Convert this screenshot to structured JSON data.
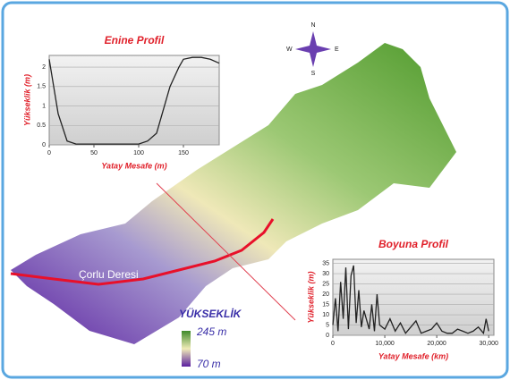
{
  "map": {
    "river": "Çorlu Deresi",
    "legend_title": "YÜKSEKLİK",
    "legend_high": "245 m",
    "legend_low": "70 m",
    "compass": {
      "n": "N",
      "e": "E",
      "s": "S",
      "w": "W"
    }
  },
  "chart_data": [
    {
      "type": "line",
      "title": "Enine Profil",
      "x_label": "Yatay Mesafe (m)",
      "y_label": "Yükseklik (m)",
      "color": "#222222",
      "x": [
        0,
        5,
        10,
        20,
        30,
        100,
        110,
        120,
        135,
        145,
        150,
        160,
        170,
        180,
        190
      ],
      "values": [
        2.2,
        1.5,
        0.8,
        0.1,
        0.02,
        0.02,
        0.1,
        0.3,
        1.5,
        2.0,
        2.2,
        2.25,
        2.25,
        2.2,
        2.1
      ],
      "xlim": [
        0,
        190
      ],
      "ylim": [
        0,
        2.3
      ],
      "xticks": [
        0,
        50,
        100,
        150
      ],
      "yticks": [
        0,
        0.5,
        1,
        1.5,
        2
      ],
      "grid": true
    },
    {
      "type": "line",
      "title": "Boyuna Profil",
      "x_label": "Yatay Mesafe (km)",
      "y_label": "Yükseklik (m)",
      "color": "#222222",
      "x": [
        0,
        500,
        1000,
        1500,
        2000,
        2500,
        3000,
        3500,
        4000,
        4500,
        5000,
        5500,
        6000,
        7000,
        7500,
        8000,
        8500,
        9000,
        10000,
        11000,
        12000,
        13000,
        14000,
        15000,
        16000,
        17000,
        18000,
        19000,
        20000,
        21000,
        22000,
        23000,
        24000,
        25000,
        26000,
        27000,
        28000,
        29000,
        29500,
        30000
      ],
      "values": [
        5,
        18,
        2,
        26,
        8,
        33,
        3,
        29,
        34,
        6,
        22,
        4,
        12,
        3,
        15,
        2,
        20,
        5,
        3,
        8,
        2,
        6,
        1,
        4,
        7,
        1,
        2,
        3,
        6,
        2,
        1,
        1,
        3,
        2,
        1,
        2,
        4,
        1,
        8,
        2
      ],
      "xlim": [
        0,
        31000
      ],
      "ylim": [
        0,
        37
      ],
      "xticks": [
        0,
        {
          "value": 10000,
          "label": "10,000"
        },
        {
          "value": 20000,
          "label": "20,000"
        },
        {
          "value": 30000,
          "label": "30,000"
        }
      ],
      "yticks": [
        0,
        5,
        10,
        15,
        20,
        25,
        30,
        35
      ],
      "grid": true
    }
  ]
}
